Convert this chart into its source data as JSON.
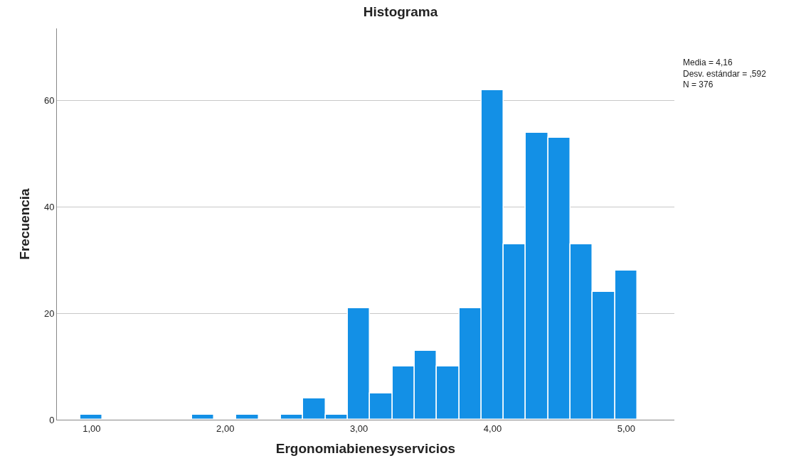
{
  "chart_data": {
    "type": "histogram",
    "title": "Histograma",
    "xlabel": "Ergonomiabienesyservicios",
    "ylabel": "Frecuencia",
    "bins": [
      0.917,
      1.083,
      1.25,
      1.417,
      1.583,
      1.75,
      1.917,
      2.083,
      2.25,
      2.417,
      2.583,
      2.75,
      2.917,
      3.083,
      3.25,
      3.417,
      3.583,
      3.75,
      3.917,
      4.083,
      4.25,
      4.417,
      4.583,
      4.75,
      4.917,
      5.083
    ],
    "values": [
      1,
      0,
      0,
      0,
      0,
      1,
      0,
      1,
      0,
      1,
      4,
      1,
      21,
      5,
      10,
      13,
      10,
      21,
      62,
      33,
      54,
      53,
      33,
      24,
      28
    ],
    "color": "#1390e6",
    "xlim": [
      0.74,
      5.36
    ],
    "xticks": [
      {
        "value": 1,
        "label": "1,00"
      },
      {
        "value": 2,
        "label": "2,00"
      },
      {
        "value": 3,
        "label": "3,00"
      },
      {
        "value": 4,
        "label": "4,00"
      },
      {
        "value": 5,
        "label": "5,00"
      }
    ],
    "ylim": [
      0,
      73.6
    ],
    "yticks": [
      0,
      20,
      40,
      60
    ],
    "grid": "y",
    "annotations": [
      "Media = 4,16\nDesv. estándar = ,592\nN = 376"
    ]
  }
}
